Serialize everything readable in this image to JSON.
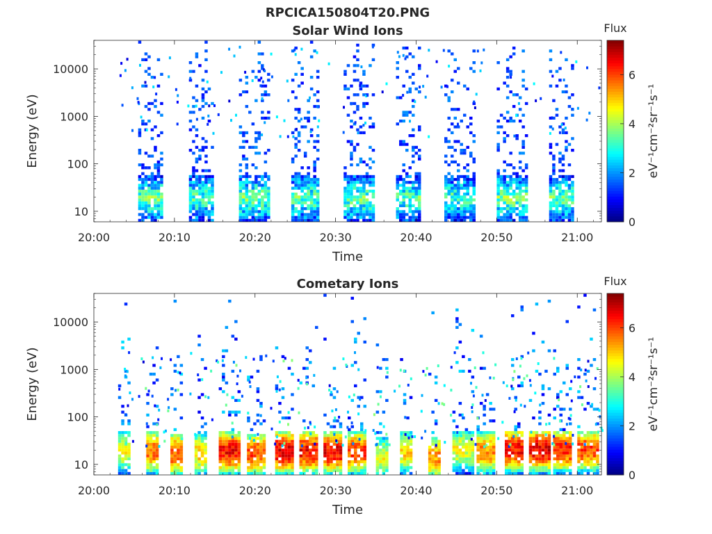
{
  "figure": {
    "title": "RPCICA150804T20.PNG"
  },
  "colormap": "jet",
  "chart_data": [
    {
      "type": "heatmap",
      "title": "Solar Wind Ions",
      "xlabel": "Time",
      "ylabel": "Energy (eV)",
      "x_ticks": [
        "20:00",
        "20:10",
        "20:20",
        "20:30",
        "20:40",
        "20:50",
        "21:00"
      ],
      "x_tick_minutes": [
        0,
        10,
        20,
        30,
        40,
        50,
        60
      ],
      "xlim_minutes": [
        0,
        63
      ],
      "y_scale": "log",
      "y_ticks": [
        "10",
        "100",
        "1000",
        "10000"
      ],
      "y_tick_values": [
        10,
        100,
        1000,
        10000
      ],
      "ylim": [
        6,
        40000
      ],
      "colorbar": {
        "label_top": "Flux",
        "label": "eV⁻¹cm⁻²sr⁻¹s⁻¹",
        "ticks": [
          "0",
          "2",
          "4",
          "6"
        ],
        "tick_values": [
          0,
          2,
          4,
          6
        ],
        "range": [
          0,
          7.4
        ]
      },
      "bursts": [
        {
          "start_min": 5.5,
          "end_min": 8.5,
          "peak_energy_eV": 20,
          "peak_flux": 4.5
        },
        {
          "start_min": 11.8,
          "end_min": 14.8,
          "peak_energy_eV": 20,
          "peak_flux": 4.3
        },
        {
          "start_min": 18.0,
          "end_min": 21.5,
          "peak_energy_eV": 20,
          "peak_flux": 4.6
        },
        {
          "start_min": 24.5,
          "end_min": 27.8,
          "peak_energy_eV": 20,
          "peak_flux": 4.4
        },
        {
          "start_min": 31.0,
          "end_min": 34.5,
          "peak_energy_eV": 20,
          "peak_flux": 4.5
        },
        {
          "start_min": 37.5,
          "end_min": 40.5,
          "peak_energy_eV": 20,
          "peak_flux": 4.3
        },
        {
          "start_min": 43.5,
          "end_min": 47.0,
          "peak_energy_eV": 20,
          "peak_flux": 4.2
        },
        {
          "start_min": 50.0,
          "end_min": 53.5,
          "peak_energy_eV": 20,
          "peak_flux": 4.6
        },
        {
          "start_min": 56.5,
          "end_min": 59.5,
          "peak_energy_eV": 20,
          "peak_flux": 4.4
        }
      ]
    },
    {
      "type": "heatmap",
      "title": "Cometary Ions",
      "xlabel": "Time",
      "ylabel": "Energy (eV)",
      "x_ticks": [
        "20:00",
        "20:10",
        "20:20",
        "20:30",
        "20:40",
        "20:50",
        "21:00"
      ],
      "x_tick_minutes": [
        0,
        10,
        20,
        30,
        40,
        50,
        60
      ],
      "xlim_minutes": [
        0,
        63
      ],
      "y_scale": "log",
      "y_ticks": [
        "10",
        "100",
        "1000",
        "10000"
      ],
      "y_tick_values": [
        10,
        100,
        1000,
        10000
      ],
      "ylim": [
        6,
        40000
      ],
      "colorbar": {
        "label_top": "Flux",
        "label": "eV⁻¹cm⁻²sr⁻¹s⁻¹",
        "ticks": [
          "0",
          "2",
          "4",
          "6"
        ],
        "tick_values": [
          0,
          2,
          4,
          6
        ],
        "range": [
          0,
          7.4
        ]
      },
      "bursts": [
        {
          "start_min": 3.0,
          "end_min": 4.5,
          "peak_energy_eV": 20,
          "peak_flux": 5.0
        },
        {
          "start_min": 6.5,
          "end_min": 8.0,
          "peak_energy_eV": 20,
          "peak_flux": 6.2
        },
        {
          "start_min": 9.5,
          "end_min": 11.0,
          "peak_energy_eV": 18,
          "peak_flux": 6.5
        },
        {
          "start_min": 12.5,
          "end_min": 14.0,
          "peak_energy_eV": 18,
          "peak_flux": 5.5
        },
        {
          "start_min": 15.5,
          "end_min": 18.0,
          "peak_energy_eV": 20,
          "peak_flux": 7.0
        },
        {
          "start_min": 19.0,
          "end_min": 21.0,
          "peak_energy_eV": 18,
          "peak_flux": 6.5
        },
        {
          "start_min": 22.5,
          "end_min": 24.5,
          "peak_energy_eV": 20,
          "peak_flux": 7.2
        },
        {
          "start_min": 25.5,
          "end_min": 27.5,
          "peak_energy_eV": 20,
          "peak_flux": 7.0
        },
        {
          "start_min": 28.5,
          "end_min": 30.5,
          "peak_energy_eV": 20,
          "peak_flux": 7.1
        },
        {
          "start_min": 31.5,
          "end_min": 33.5,
          "peak_energy_eV": 20,
          "peak_flux": 6.6
        },
        {
          "start_min": 35.0,
          "end_min": 36.5,
          "peak_energy_eV": 15,
          "peak_flux": 5.0
        },
        {
          "start_min": 38.0,
          "end_min": 39.5,
          "peak_energy_eV": 20,
          "peak_flux": 5.5
        },
        {
          "start_min": 41.5,
          "end_min": 43.0,
          "peak_energy_eV": 15,
          "peak_flux": 6.0
        },
        {
          "start_min": 44.5,
          "end_min": 47.0,
          "peak_energy_eV": 22,
          "peak_flux": 5.0
        },
        {
          "start_min": 47.5,
          "end_min": 49.5,
          "peak_energy_eV": 20,
          "peak_flux": 6.0
        },
        {
          "start_min": 51.0,
          "end_min": 53.0,
          "peak_energy_eV": 22,
          "peak_flux": 7.0
        },
        {
          "start_min": 54.0,
          "end_min": 56.5,
          "peak_energy_eV": 22,
          "peak_flux": 7.2
        },
        {
          "start_min": 57.0,
          "end_min": 59.0,
          "peak_energy_eV": 22,
          "peak_flux": 6.8
        },
        {
          "start_min": 60.0,
          "end_min": 62.5,
          "peak_energy_eV": 22,
          "peak_flux": 6.5
        }
      ]
    }
  ]
}
